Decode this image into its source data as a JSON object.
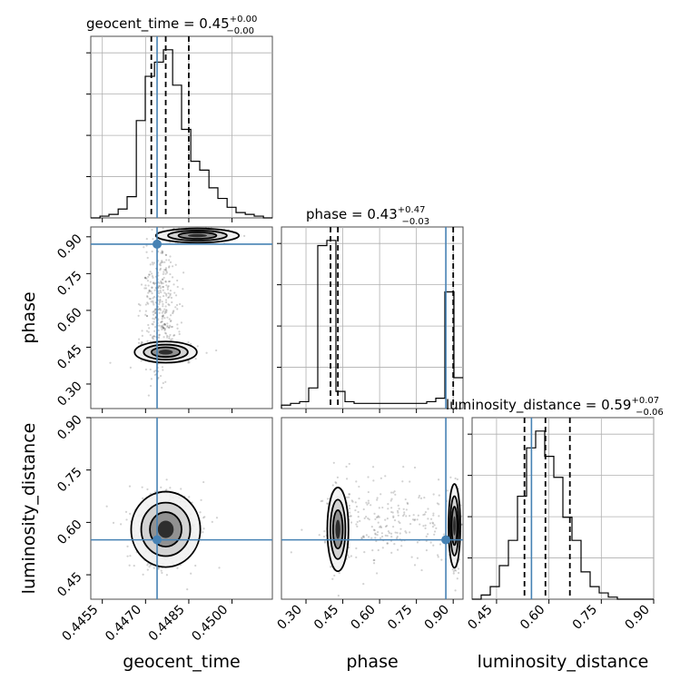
{
  "chart_data": {
    "type": "corner",
    "parameters": [
      "geocent_time",
      "phase",
      "luminosity_distance"
    ],
    "titles": {
      "geocent_time": {
        "label": "geocent_time",
        "median": "0.45",
        "plus": "+0.00",
        "minus": "−0.00"
      },
      "phase": {
        "label": "phase",
        "median": "0.43",
        "plus": "+0.47",
        "minus": "−0.03"
      },
      "luminosity_distance": {
        "label": "luminosity_distance",
        "median": "0.59",
        "plus": "+0.07",
        "minus": "−0.06"
      }
    },
    "ranges": {
      "geocent_time": [
        0.4451,
        0.4514
      ],
      "phase": [
        0.2,
        0.94
      ],
      "luminosity_distance": [
        0.38,
        0.9
      ]
    },
    "ticks": {
      "geocent_time": [
        "0.4455",
        "0.4470",
        "0.4485",
        "0.4500"
      ],
      "geocent_time_values": [
        0.4455,
        0.447,
        0.4485,
        0.45
      ],
      "phase": [
        "0.30",
        "0.45",
        "0.60",
        "0.75",
        "0.90"
      ],
      "phase_values": [
        0.3,
        0.45,
        0.6,
        0.75,
        0.9
      ],
      "luminosity_distance": [
        "0.45",
        "0.60",
        "0.75",
        "0.90"
      ],
      "luminosity_distance_values": [
        0.45,
        0.6,
        0.75,
        0.9
      ]
    },
    "truths": {
      "geocent_time": 0.4474,
      "phase": 0.87,
      "luminosity_distance": 0.55
    },
    "quantiles": {
      "geocent_time": [
        0.4472,
        0.4477,
        0.4485
      ],
      "phase": [
        0.4,
        0.43,
        0.9
      ],
      "luminosity_distance": [
        0.53,
        0.59,
        0.66
      ]
    },
    "histograms": {
      "geocent_time": {
        "bins": [
          0.4451,
          0.44542,
          0.44573,
          0.44605,
          0.44636,
          0.44668,
          0.44699,
          0.44731,
          0.44762,
          0.44794,
          0.44825,
          0.44857,
          0.44888,
          0.4492,
          0.44951,
          0.44983,
          0.45014,
          0.45046,
          0.45077,
          0.45109,
          0.4514
        ],
        "counts": [
          0,
          1,
          2,
          5,
          12,
          55,
          80,
          88,
          95,
          75,
          50,
          32,
          27,
          17,
          11,
          6,
          3,
          2,
          1,
          0
        ]
      },
      "phase": {
        "bins": [
          0.2,
          0.237,
          0.274,
          0.311,
          0.348,
          0.385,
          0.422,
          0.459,
          0.496,
          0.533,
          0.57,
          0.607,
          0.644,
          0.681,
          0.718,
          0.755,
          0.792,
          0.829,
          0.866,
          0.903,
          0.94
        ],
        "counts": [
          2,
          3,
          4,
          12,
          95,
          98,
          10,
          4,
          3,
          3,
          3,
          3,
          3,
          3,
          3,
          3,
          4,
          6,
          68,
          18
        ]
      },
      "luminosity_distance": {
        "bins": [
          0.38,
          0.406,
          0.432,
          0.458,
          0.484,
          0.51,
          0.536,
          0.562,
          0.588,
          0.614,
          0.64,
          0.666,
          0.692,
          0.718,
          0.744,
          0.77,
          0.796,
          0.822,
          0.848,
          0.874,
          0.9
        ],
        "counts": [
          0,
          2,
          6,
          16,
          28,
          49,
          72,
          80,
          68,
          58,
          39,
          28,
          13,
          6,
          3,
          1,
          0,
          0,
          0,
          0
        ]
      }
    }
  }
}
